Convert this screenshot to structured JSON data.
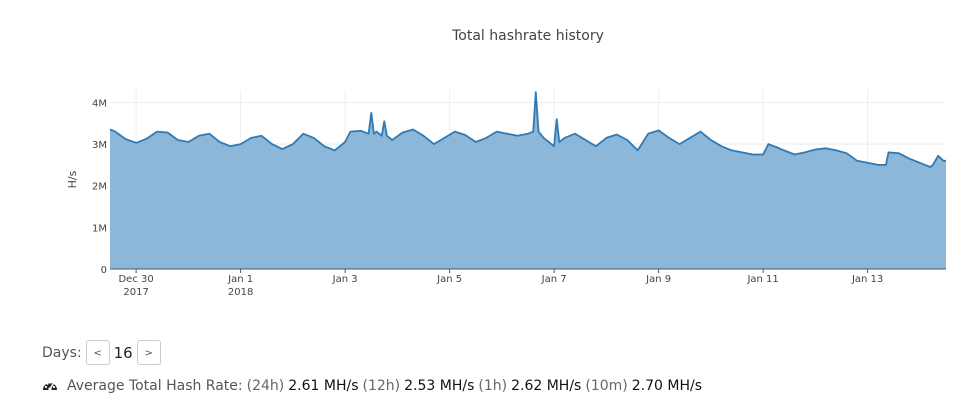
{
  "chart_data": {
    "type": "area",
    "title": "Total hashrate history",
    "ylabel": "H/s",
    "xlabel": "",
    "ylim": [
      0,
      4300000
    ],
    "y_ticks": [
      {
        "value": 0,
        "label": "0"
      },
      {
        "value": 1000000,
        "label": "1M"
      },
      {
        "value": 2000000,
        "label": "2M"
      },
      {
        "value": 3000000,
        "label": "3M"
      },
      {
        "value": 4000000,
        "label": "4M"
      }
    ],
    "x_ticks": [
      {
        "value": 0.5,
        "label": "Dec 30",
        "sublabel": "2017"
      },
      {
        "value": 2.5,
        "label": "Jan 1",
        "sublabel": "2018"
      },
      {
        "value": 4.5,
        "label": "Jan 3",
        "sublabel": ""
      },
      {
        "value": 6.5,
        "label": "Jan 5",
        "sublabel": ""
      },
      {
        "value": 8.5,
        "label": "Jan 7",
        "sublabel": ""
      },
      {
        "value": 10.5,
        "label": "Jan 9",
        "sublabel": ""
      },
      {
        "value": 12.5,
        "label": "Jan 11",
        "sublabel": ""
      },
      {
        "value": 14.5,
        "label": "Jan 13",
        "sublabel": ""
      }
    ],
    "xlim": [
      0,
      16
    ],
    "grid": true,
    "color_line": "#2f7ab5",
    "color_fill": "#8cb7d8",
    "series": [
      {
        "x": [
          0,
          0.1,
          0.3,
          0.5,
          0.7,
          0.9,
          1.1,
          1.3,
          1.5,
          1.7,
          1.9,
          2.1,
          2.3,
          2.5,
          2.7,
          2.9,
          3.1,
          3.3,
          3.5,
          3.7,
          3.9,
          4.1,
          4.3,
          4.5,
          4.6,
          4.8,
          4.95,
          5.0,
          5.05,
          5.1,
          5.2,
          5.25,
          5.3,
          5.4,
          5.6,
          5.8,
          6.0,
          6.2,
          6.4,
          6.6,
          6.8,
          7.0,
          7.2,
          7.4,
          7.6,
          7.8,
          8.0,
          8.1,
          8.15,
          8.2,
          8.3,
          8.5,
          8.55,
          8.6,
          8.7,
          8.9,
          9.1,
          9.3,
          9.5,
          9.7,
          9.9,
          10.1,
          10.3,
          10.5,
          10.7,
          10.9,
          11.1,
          11.3,
          11.5,
          11.7,
          11.9,
          12.1,
          12.3,
          12.5,
          12.6,
          12.7,
          12.75,
          12.9,
          13.1,
          13.3,
          13.5,
          13.7,
          13.9,
          14.1,
          14.3,
          14.5,
          14.7,
          14.85,
          14.9,
          15.1,
          15.3,
          15.5,
          15.7,
          15.75,
          15.85,
          15.95,
          16.0
        ],
        "y": [
          3350000,
          3300000,
          3120000,
          3030000,
          3130000,
          3300000,
          3280000,
          3100000,
          3050000,
          3200000,
          3250000,
          3050000,
          2950000,
          3000000,
          3150000,
          3200000,
          3000000,
          2880000,
          3000000,
          3250000,
          3150000,
          2950000,
          2850000,
          3050000,
          3300000,
          3320000,
          3250000,
          3750000,
          3250000,
          3300000,
          3200000,
          3550000,
          3200000,
          3100000,
          3280000,
          3350000,
          3200000,
          3000000,
          3150000,
          3300000,
          3220000,
          3050000,
          3150000,
          3300000,
          3250000,
          3200000,
          3250000,
          3300000,
          4250000,
          3300000,
          3150000,
          2950000,
          3600000,
          3050000,
          3150000,
          3250000,
          3100000,
          2950000,
          3150000,
          3230000,
          3100000,
          2850000,
          3250000,
          3330000,
          3150000,
          3000000,
          3150000,
          3300000,
          3100000,
          2950000,
          2850000,
          2800000,
          2750000,
          2750000,
          3000000,
          2950000,
          2930000,
          2850000,
          2750000,
          2800000,
          2870000,
          2900000,
          2850000,
          2780000,
          2600000,
          2550000,
          2500000,
          2500000,
          2800000,
          2780000,
          2650000,
          2550000,
          2450000,
          2500000,
          2720000,
          2600000,
          2600000
        ]
      }
    ]
  },
  "controls": {
    "days_label": "Days:",
    "prev_label": "<",
    "days_value": "16",
    "next_label": ">"
  },
  "hashrate": {
    "icon": "dashboard-gauge-icon",
    "label": "Average Total Hash Rate:",
    "items": [
      {
        "period": "(24h)",
        "value": "2.61 MH/s"
      },
      {
        "period": "(12h)",
        "value": "2.53 MH/s"
      },
      {
        "period": "(1h)",
        "value": "2.62 MH/s"
      },
      {
        "period": "(10m)",
        "value": "2.70 MH/s"
      }
    ]
  }
}
